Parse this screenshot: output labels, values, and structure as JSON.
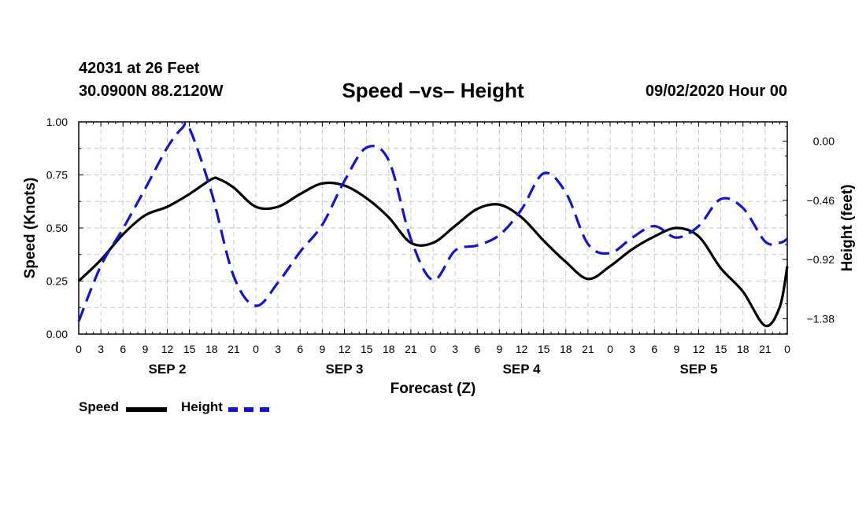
{
  "header": {
    "station": "42031 at 26 Feet",
    "coords": "30.0900N 88.2120W",
    "title": "Speed –vs– Height",
    "timestamp": "09/02/2020 Hour 00"
  },
  "legend": {
    "speed": "Speed",
    "height": "Height"
  },
  "chart_data": {
    "type": "line",
    "title": "Speed –vs– Height",
    "xlabel": "Forecast (Z)",
    "ylabel": "Speed (Knots)",
    "y2label": "Height (feet)",
    "x_range_hours": [
      0,
      96
    ],
    "ylim": [
      0,
      1.0
    ],
    "y2lim": [
      -1.5,
      0.15
    ],
    "x_tick_labels": [
      "0",
      "3",
      "6",
      "9",
      "12",
      "15",
      "18",
      "21",
      "0",
      "3",
      "6",
      "9",
      "12",
      "15",
      "18",
      "21",
      "0",
      "3",
      "6",
      "9",
      "12",
      "15",
      "18",
      "21",
      "0",
      "3",
      "6",
      "9",
      "12",
      "15",
      "18",
      "21",
      "0"
    ],
    "day_labels": [
      {
        "label": "SEP 2",
        "hour": 12
      },
      {
        "label": "SEP 3",
        "hour": 36
      },
      {
        "label": "SEP 4",
        "hour": 60
      },
      {
        "label": "SEP 5",
        "hour": 84
      }
    ],
    "y_tick_labels": [
      "0.00",
      "0.25",
      "0.50",
      "0.75",
      "1.00"
    ],
    "y_tick_values": [
      0,
      0.25,
      0.5,
      0.75,
      1.0
    ],
    "y2_tick_labels": [
      "0.00",
      "−0.46",
      "−0.92",
      "−1.38"
    ],
    "y2_tick_values": [
      0,
      -0.46,
      -0.92,
      -1.38
    ],
    "series": [
      {
        "name": "Speed",
        "color": "#000000",
        "axis": "left",
        "style": "solid",
        "x": [
          0,
          3,
          6,
          9,
          12,
          15,
          18,
          19,
          21,
          24,
          27,
          30,
          33,
          36,
          39,
          42,
          45,
          48,
          51,
          54,
          57,
          60,
          63,
          66,
          69,
          72,
          75,
          78,
          81,
          84,
          87,
          90,
          93,
          95,
          96
        ],
        "values": [
          0.25,
          0.35,
          0.47,
          0.56,
          0.6,
          0.66,
          0.73,
          0.73,
          0.69,
          0.6,
          0.6,
          0.66,
          0.71,
          0.7,
          0.64,
          0.55,
          0.43,
          0.43,
          0.51,
          0.59,
          0.61,
          0.55,
          0.44,
          0.34,
          0.26,
          0.32,
          0.4,
          0.46,
          0.5,
          0.46,
          0.31,
          0.2,
          0.04,
          0.13,
          0.32
        ]
      },
      {
        "name": "Height",
        "color": "#1414c8",
        "axis": "right",
        "style": "dashed",
        "x": [
          0,
          3,
          6,
          9,
          12,
          14,
          15,
          18,
          21,
          24,
          27,
          30,
          33,
          36,
          39,
          42,
          45,
          48,
          51,
          54,
          57,
          60,
          63,
          66,
          69,
          72,
          75,
          78,
          81,
          84,
          87,
          90,
          93,
          95,
          96
        ],
        "values": [
          -1.4,
          -0.97,
          -0.68,
          -0.37,
          -0.05,
          0.1,
          0.1,
          -0.4,
          -1.05,
          -1.28,
          -1.1,
          -0.86,
          -0.65,
          -0.31,
          -0.05,
          -0.15,
          -0.76,
          -1.08,
          -0.85,
          -0.81,
          -0.73,
          -0.53,
          -0.25,
          -0.4,
          -0.8,
          -0.87,
          -0.75,
          -0.66,
          -0.75,
          -0.66,
          -0.45,
          -0.52,
          -0.78,
          -0.79,
          -0.76
        ]
      }
    ]
  }
}
